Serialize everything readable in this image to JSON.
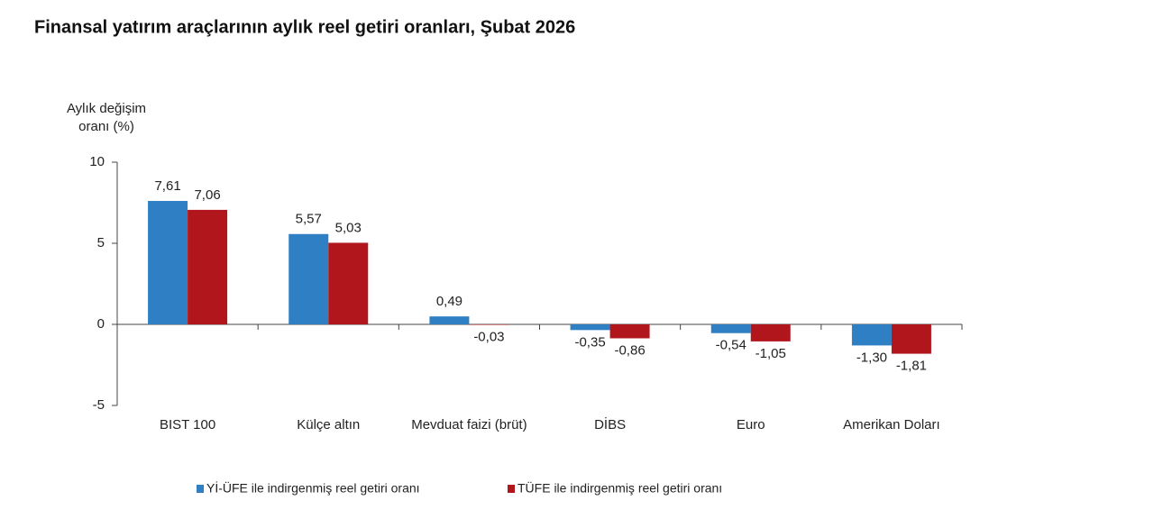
{
  "chart_data": {
    "type": "bar",
    "title": "Finansal yatırım araçlarının aylık reel getiri oranları, Şubat 2026",
    "ylabel": [
      "Aylık değişim",
      "oranı (%)"
    ],
    "categories": [
      "BIST 100",
      "Külçe altın",
      "Mevduat faizi (brüt)",
      "DİBS",
      "Euro",
      "Amerikan Doları"
    ],
    "series": [
      {
        "name": "Yİ-ÜFE ile indirgenmiş reel getiri oranı",
        "color": "#2e7fc4",
        "values": [
          7.61,
          5.57,
          0.49,
          -0.35,
          -0.54,
          -1.3
        ],
        "value_labels": [
          "7,61",
          "5,57",
          "0,49",
          "-0,35",
          "-0,54",
          "-1,30"
        ]
      },
      {
        "name": "TÜFE ile indirgenmiş reel getiri oranı",
        "color": "#b0161c",
        "values": [
          7.06,
          5.03,
          -0.03,
          -0.86,
          -1.05,
          -1.81
        ],
        "value_labels": [
          "7,06",
          "5,03",
          "-0,03",
          "-0,86",
          "-1,05",
          "-1,81"
        ]
      }
    ],
    "ylim": [
      -5,
      10
    ],
    "yticks": [
      -5,
      0,
      5,
      10
    ],
    "grid": false
  }
}
